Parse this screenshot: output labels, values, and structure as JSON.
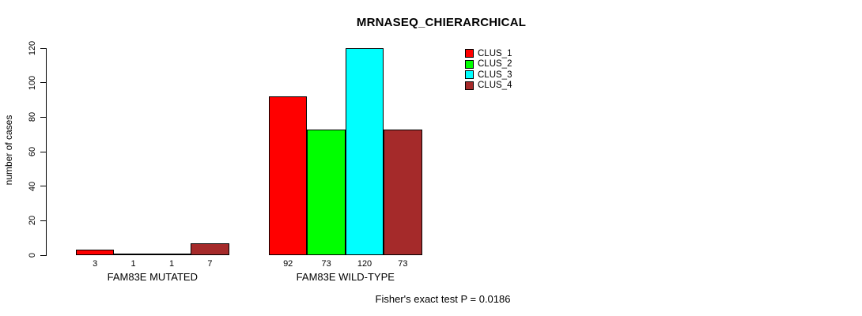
{
  "chart_data": {
    "type": "bar",
    "title": "MRNASEQ_CHIERARCHICAL",
    "ylabel": "number of cases",
    "xlabel": "",
    "categories": [
      "FAM83E MUTATED",
      "FAM83E WILD-TYPE"
    ],
    "series": [
      {
        "name": "CLUS_1",
        "color": "#FF0000",
        "values": [
          3,
          92
        ]
      },
      {
        "name": "CLUS_2",
        "color": "#00FF00",
        "values": [
          1,
          73
        ]
      },
      {
        "name": "CLUS_3",
        "color": "#00FFFF",
        "values": [
          1,
          120
        ]
      },
      {
        "name": "CLUS_4",
        "color": "#A52A2A",
        "values": [
          7,
          73
        ]
      }
    ],
    "bar_labels": [
      [
        "3",
        "1",
        "1",
        "7"
      ],
      [
        "92",
        "73",
        "120",
        "73"
      ]
    ],
    "yticks": [
      0,
      20,
      40,
      60,
      80,
      100,
      120
    ],
    "ylim": [
      0,
      120
    ],
    "grid": false,
    "legend_position": "top-right",
    "legend_entries": [
      "CLUS_1",
      "CLUS_2",
      "CLUS_3",
      "CLUS_4"
    ],
    "annotation": "Fisher's exact test P = 0.0186"
  }
}
